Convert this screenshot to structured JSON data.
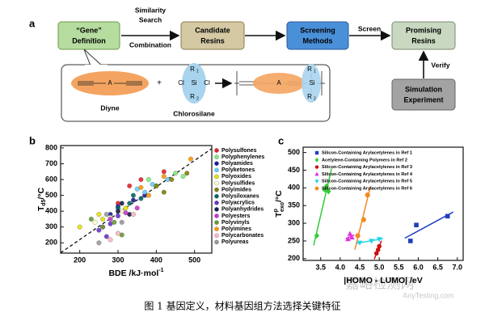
{
  "diagram": {
    "label": "a",
    "nodes": [
      {
        "lines": [
          "“Gene”",
          "Definition"
        ]
      },
      {
        "lines": [
          "Candidate",
          "Resins"
        ]
      },
      {
        "lines": [
          "Screening",
          "Methods"
        ]
      },
      {
        "lines": [
          "Promising",
          "Resins"
        ]
      },
      {
        "lines": [
          "Simulation",
          "Experiment"
        ]
      }
    ],
    "edge_labels": {
      "similarity": [
        "Similarity",
        "Search"
      ],
      "combination": "Combination",
      "screen": "Screen",
      "verify": "Verify"
    },
    "chemistry": {
      "atom_a": "A",
      "chlorine": "Cl",
      "silicon": "Si",
      "r": "R",
      "sub1": "1",
      "sub2": "2",
      "plus": "+",
      "diyne": "Diyne",
      "chlorosilane": "Chlorosilane"
    }
  },
  "chart_data": [
    {
      "type": "scatter",
      "label": "b",
      "xlabel": {
        "text": "BDE /kJ·mol",
        "sup": "-1"
      },
      "ylabel": {
        "text": "T",
        "sub": "d5",
        "unit": "/°C"
      },
      "xlim": [
        150,
        545
      ],
      "xticks": [
        200,
        300,
        400,
        500
      ],
      "ylim": [
        135,
        815
      ],
      "yticks": [
        200,
        300,
        400,
        500,
        600,
        700,
        800
      ],
      "trend": true,
      "legend": "outside-right",
      "series": [
        {
          "name": "Polysulfones",
          "color": "#e8202a",
          "x": [
            330,
            360,
            420,
            300
          ],
          "values": [
            560,
            600,
            650,
            450
          ]
        },
        {
          "name": "Polyphenylenes",
          "color": "#7cf07c",
          "x": [
            380,
            450,
            470,
            400
          ],
          "values": [
            600,
            640,
            620,
            560
          ]
        },
        {
          "name": "Polyamides",
          "color": "#1a1aa0",
          "x": [
            300,
            340,
            370,
            280
          ],
          "values": [
            430,
            470,
            500,
            380
          ]
        },
        {
          "name": "Polyketones",
          "color": "#66ccff",
          "x": [
            350,
            390,
            430,
            370
          ],
          "values": [
            540,
            570,
            600,
            520
          ]
        },
        {
          "name": "Polyoxides",
          "color": "#e8e000",
          "x": [
            200,
            260,
            320,
            250
          ],
          "values": [
            300,
            350,
            420,
            380
          ]
        },
        {
          "name": "Polysulfides",
          "color": "#ffffcc",
          "x": [
            240,
            280,
            310
          ],
          "values": [
            330,
            360,
            400
          ]
        },
        {
          "name": "Polyimides",
          "color": "#808000",
          "x": [
            400,
            440,
            480,
            420
          ],
          "values": [
            560,
            600,
            640,
            520
          ]
        },
        {
          "name": "Polysiloxanes",
          "color": "#006666",
          "x": [
            330,
            360,
            300,
            340
          ],
          "values": [
            450,
            480,
            420,
            500
          ]
        },
        {
          "name": "Polyacrylics",
          "color": "#6633cc",
          "x": [
            250,
            280,
            300,
            270
          ],
          "values": [
            280,
            320,
            370,
            240
          ]
        },
        {
          "name": "Polyanhydrides",
          "color": "#1a1a4d",
          "x": [
            300,
            330,
            310
          ],
          "values": [
            400,
            380,
            450
          ]
        },
        {
          "name": "Polyesters",
          "color": "#cc33cc",
          "x": [
            280,
            320,
            260,
            350
          ],
          "values": [
            350,
            390,
            300,
            420
          ]
        },
        {
          "name": "Polyvinyls",
          "color": "#669933",
          "x": [
            230,
            260,
            290,
            310
          ],
          "values": [
            350,
            300,
            330,
            250
          ]
        },
        {
          "name": "Polyimines",
          "color": "#ff9900",
          "x": [
            490,
            420,
            360,
            380
          ],
          "values": [
            730,
            620,
            550,
            500
          ]
        },
        {
          "name": "Polycarbonates",
          "color": "#ffb6c1",
          "x": [
            280,
            300,
            340
          ],
          "values": [
            220,
            260,
            380
          ]
        },
        {
          "name": "Polyureas",
          "color": "#999999",
          "x": [
            250,
            270,
            310
          ],
          "values": [
            200,
            380,
            330
          ]
        }
      ]
    },
    {
      "type": "scatter",
      "label": "c",
      "xlabel": {
        "text": "|HOMO - LUMO| /eV"
      },
      "ylabel": {
        "text": "T",
        "sup": "p",
        "sub": "exo",
        "unit": "/°C"
      },
      "xlim": [
        3.05,
        7.15
      ],
      "xticks": [
        3.5,
        4.0,
        4.5,
        5.0,
        5.5,
        6.0,
        6.5,
        7.0
      ],
      "ylim": [
        195,
        515
      ],
      "yticks": [
        200,
        250,
        300,
        350,
        400,
        450,
        500
      ],
      "fit": true,
      "legend": "upper-left",
      "series": [
        {
          "name": "Silicon-Containing Arylacetylenes in Ref 1",
          "color": "#1f3fbf",
          "marker": "square",
          "x": [
            5.8,
            5.95,
            6.75
          ],
          "values": [
            250,
            295,
            320
          ]
        },
        {
          "name": "Acetylene-Containing Polymers in Ref 2",
          "color": "#33cc33",
          "marker": "diamond",
          "x": [
            3.4,
            3.6,
            3.65,
            3.7
          ],
          "values": [
            265,
            395,
            405,
            390
          ]
        },
        {
          "name": "Silicon-Containing Arylacetylenes in Ref 3",
          "color": "#cc1111",
          "marker": "circle",
          "x": [
            4.93,
            4.97,
            5.0
          ],
          "values": [
            215,
            225,
            235
          ]
        },
        {
          "name": "Silicon-Containing Arylacetylenes in Ref 4",
          "color": "#e033e0",
          "marker": "triangle",
          "x": [
            4.2,
            4.25,
            4.3
          ],
          "values": [
            255,
            270,
            260
          ]
        },
        {
          "name": "Silicon-Containing Arylacetylenes in Ref 5",
          "color": "#22d3e8",
          "marker": "triangle-down",
          "x": [
            4.5,
            4.8,
            5.0
          ],
          "values": [
            245,
            250,
            255
          ]
        },
        {
          "name": "Silicon-Containing Arylacetylenes in Ref 6",
          "color": "#f08a24",
          "marker": "hexagon",
          "x": [
            4.45,
            4.6,
            4.7
          ],
          "values": [
            265,
            310,
            380
          ]
        }
      ]
    }
  ],
  "caption": "图 1  基因定义，材料基因组方法选择关键特征",
  "watermark": [
    "嘉峪检测网",
    "AnyTesting.com"
  ]
}
